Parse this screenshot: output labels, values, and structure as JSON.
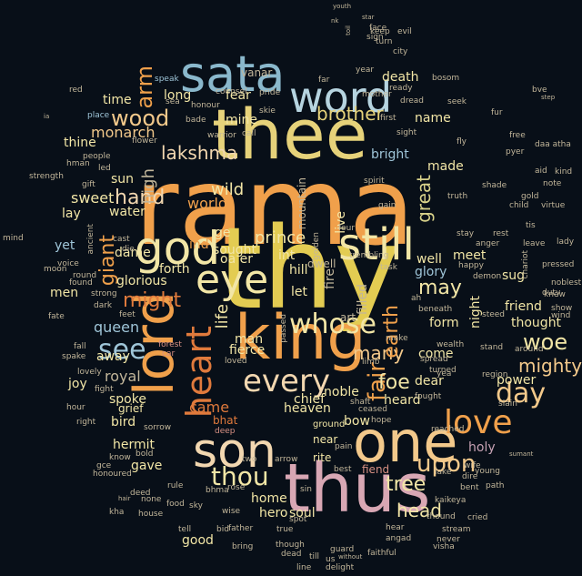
{
  "palette": [
    "#f0a04b",
    "#e8c85a",
    "#7fb3c8",
    "#d79083",
    "#f2e6a6",
    "#c2b69a",
    "#e07a3c",
    "#c7a2b4",
    "#9fc5d8",
    "#f3c98b"
  ],
  "words": [
    {
      "text": "rama",
      "color": "#f0a04b"
    },
    {
      "text": "thy",
      "color": "#e3cc52"
    },
    {
      "text": "thee",
      "color": "#e6d27a"
    },
    {
      "text": "sata",
      "color": "#8ab8cc"
    },
    {
      "text": "king",
      "color": "#f0a04b"
    },
    {
      "text": "thus",
      "color": "#d8a7b4"
    },
    {
      "text": "son",
      "color": "#f2d7b0"
    },
    {
      "text": "one",
      "color": "#f3c98b"
    },
    {
      "text": "lord",
      "color": "#f0a04b"
    },
    {
      "text": "god",
      "color": "#f2e6a6"
    },
    {
      "text": "word",
      "color": "#b6d4e0"
    },
    {
      "text": "still",
      "color": "#f2e6a6"
    },
    {
      "text": "eye",
      "color": "#f2e6a6"
    },
    {
      "text": "whose",
      "color": "#f2e6a6"
    },
    {
      "text": "heart",
      "color": "#e07a3c"
    },
    {
      "text": "every",
      "color": "#f2d7b0"
    },
    {
      "text": "day",
      "color": "#f3c98b"
    },
    {
      "text": "love",
      "color": "#f0a04b"
    },
    {
      "text": "see",
      "color": "#9fc5d8"
    },
    {
      "text": "thou",
      "color": "#f2e6a6"
    },
    {
      "text": "wood",
      "color": "#f3c98b"
    },
    {
      "text": "lakshma",
      "color": "#f2d7b0"
    },
    {
      "text": "brother",
      "color": "#e6d27a"
    },
    {
      "text": "upon",
      "color": "#f3c98b"
    },
    {
      "text": "fair",
      "color": "#f0a04b"
    },
    {
      "text": "might",
      "color": "#e07a3c"
    },
    {
      "text": "mighty",
      "color": "#f3c98b"
    },
    {
      "text": "tree",
      "color": "#f2e6a6"
    },
    {
      "text": "woe",
      "color": "#f2e6a6"
    },
    {
      "text": "many",
      "color": "#f3c98b"
    },
    {
      "text": "hand",
      "color": "#f2d7b0"
    },
    {
      "text": "prince",
      "color": "#f2e6a6"
    },
    {
      "text": "foe",
      "color": "#f2e6a6"
    },
    {
      "text": "may",
      "color": "#f2e6a6"
    },
    {
      "text": "earth",
      "color": "#f0a04b"
    },
    {
      "text": "head",
      "color": "#f2e6a6"
    },
    {
      "text": "came",
      "color": "#e07a3c"
    },
    {
      "text": "name",
      "color": "#f2e6a6"
    },
    {
      "text": "great",
      "color": "#d8d28a"
    },
    {
      "text": "arm",
      "color": "#f0a04b"
    },
    {
      "text": "wild",
      "color": "#f2e6a6"
    },
    {
      "text": "bright",
      "color": "#9fc5d8"
    },
    {
      "text": "giant",
      "color": "#f0a04b"
    },
    {
      "text": "high",
      "color": "#c2b69a"
    },
    {
      "text": "death",
      "color": "#f2e6a6"
    },
    {
      "text": "fear",
      "color": "#f2e6a6"
    },
    {
      "text": "long",
      "color": "#f2e6a6"
    },
    {
      "text": "monarch",
      "color": "#f3c98b"
    },
    {
      "text": "thine",
      "color": "#f2e6a6"
    },
    {
      "text": "sweet",
      "color": "#f2e6a6"
    },
    {
      "text": "world",
      "color": "#f0a04b"
    },
    {
      "text": "life",
      "color": "#f2e6a6"
    },
    {
      "text": "dame",
      "color": "#f2e6a6"
    },
    {
      "text": "queen",
      "color": "#9fc5d8"
    },
    {
      "text": "royal",
      "color": "#c2b69a"
    },
    {
      "text": "glorious",
      "color": "#f2e6a6"
    },
    {
      "text": "fierce",
      "color": "#f2e6a6"
    },
    {
      "text": "man",
      "color": "#f2e6a6"
    },
    {
      "text": "chief",
      "color": "#f2e6a6"
    },
    {
      "text": "heard",
      "color": "#f2e6a6"
    },
    {
      "text": "home",
      "color": "#f2e6a6"
    },
    {
      "text": "soul",
      "color": "#f2e6a6"
    },
    {
      "text": "hero",
      "color": "#f2e6a6"
    },
    {
      "text": "spoke",
      "color": "#f2e6a6"
    },
    {
      "text": "hermit",
      "color": "#f2e6a6"
    },
    {
      "text": "gave",
      "color": "#f2e6a6"
    },
    {
      "text": "joy",
      "color": "#f2e6a6"
    },
    {
      "text": "bow",
      "color": "#f2e6a6"
    },
    {
      "text": "holy",
      "color": "#c7a2b4"
    },
    {
      "text": "power",
      "color": "#f2e6a6"
    },
    {
      "text": "friend",
      "color": "#f2e6a6"
    },
    {
      "text": "thought",
      "color": "#f2e6a6"
    },
    {
      "text": "meet",
      "color": "#f2e6a6"
    },
    {
      "text": "glory",
      "color": "#9fc5d8"
    },
    {
      "text": "form",
      "color": "#f2e6a6"
    },
    {
      "text": "come",
      "color": "#f2e6a6"
    },
    {
      "text": "heaven",
      "color": "#f2e6a6"
    },
    {
      "text": "noble",
      "color": "#f2e6a6"
    },
    {
      "text": "dear",
      "color": "#f2e6a6"
    },
    {
      "text": "good",
      "color": "#f2e6a6"
    },
    {
      "text": "ground",
      "color": "#f2e6a6"
    },
    {
      "text": "sun",
      "color": "#f2e6a6"
    },
    {
      "text": "water",
      "color": "#f2e6a6"
    },
    {
      "text": "lay",
      "color": "#f2e6a6"
    },
    {
      "text": "yet",
      "color": "#9fc5d8"
    },
    {
      "text": "men",
      "color": "#f2e6a6"
    },
    {
      "text": "time",
      "color": "#f2e6a6"
    },
    {
      "text": "bird",
      "color": "#f2e6a6"
    },
    {
      "text": "grief",
      "color": "#f2e6a6"
    },
    {
      "text": "mine",
      "color": "#f2e6a6"
    },
    {
      "text": "forth",
      "color": "#f2e6a6"
    },
    {
      "text": "sought",
      "color": "#f2e6a6"
    },
    {
      "text": "made",
      "color": "#f2e6a6"
    },
    {
      "text": "night",
      "color": "#f2e6a6"
    },
    {
      "text": "away",
      "color": "#f2e6a6"
    },
    {
      "text": "live",
      "color": "#f2e6a6"
    },
    {
      "text": "hill",
      "color": "#f2e6a6"
    },
    {
      "text": "let",
      "color": "#f2e6a6"
    },
    {
      "text": "ind",
      "color": "#f0a04b"
    },
    {
      "text": "ge",
      "color": "#f2e6a6"
    },
    {
      "text": "int",
      "color": "#f2e6a6"
    },
    {
      "text": "oa er",
      "color": "#f2e6a6"
    },
    {
      "text": "bhat",
      "color": "#e07a3c"
    },
    {
      "text": "near",
      "color": "#f2e6a6"
    },
    {
      "text": "rite",
      "color": "#f2e6a6"
    },
    {
      "text": "fiend",
      "color": "#d79083"
    },
    {
      "text": "sug",
      "color": "#f2e6a6"
    },
    {
      "text": "well",
      "color": "#f2e6a6"
    },
    {
      "text": "stay",
      "color": "#c2b69a"
    },
    {
      "text": "leave",
      "color": "#c2b69a"
    },
    {
      "text": "rest",
      "color": "#c2b69a"
    },
    {
      "text": "child",
      "color": "#c2b69a"
    },
    {
      "text": "vanar",
      "color": "#c2b69a"
    },
    {
      "text": "speak",
      "color": "#9fc5d8"
    },
    {
      "text": "counsel",
      "color": "#c2b69a"
    },
    {
      "text": "pride",
      "color": "#c2b69a"
    },
    {
      "text": "skie",
      "color": "#c2b69a"
    },
    {
      "text": "warrior",
      "color": "#c2b69a"
    },
    {
      "text": "call",
      "color": "#c2b69a"
    },
    {
      "text": "honour",
      "color": "#c2b69a"
    },
    {
      "text": "sea",
      "color": "#c2b69a"
    },
    {
      "text": "bosom",
      "color": "#c2b69a"
    },
    {
      "text": "city",
      "color": "#c2b69a"
    },
    {
      "text": "mother",
      "color": "#c2b69a"
    },
    {
      "text": "ready",
      "color": "#c2b69a"
    },
    {
      "text": "dread",
      "color": "#c2b69a"
    },
    {
      "text": "seek",
      "color": "#c2b69a"
    },
    {
      "text": "first",
      "color": "#c2b69a"
    },
    {
      "text": "sight",
      "color": "#c2b69a"
    },
    {
      "text": "fly",
      "color": "#c2b69a"
    },
    {
      "text": "free",
      "color": "#c2b69a"
    },
    {
      "text": "spirit",
      "color": "#c2b69a"
    },
    {
      "text": "gain",
      "color": "#c2b69a"
    },
    {
      "text": "truth",
      "color": "#c2b69a"
    },
    {
      "text": "shade",
      "color": "#c2b69a"
    },
    {
      "text": "gold",
      "color": "#c2b69a"
    },
    {
      "text": "virtue",
      "color": "#c2b69a"
    },
    {
      "text": "lady",
      "color": "#c2b69a"
    },
    {
      "text": "kind",
      "color": "#c2b69a"
    },
    {
      "text": "aid",
      "color": "#c2b69a"
    },
    {
      "text": "note",
      "color": "#c2b69a"
    },
    {
      "text": "daa atha",
      "color": "#c2b69a"
    },
    {
      "text": "bve",
      "color": "#c2b69a"
    },
    {
      "text": "step",
      "color": "#c2b69a"
    },
    {
      "text": "knew",
      "color": "#c2b69a"
    },
    {
      "text": "show",
      "color": "#c2b69a"
    },
    {
      "text": "wind",
      "color": "#c2b69a"
    },
    {
      "text": "duty",
      "color": "#c2b69a"
    },
    {
      "text": "noblest",
      "color": "#c2b69a"
    },
    {
      "text": "pressed",
      "color": "#c2b69a"
    },
    {
      "text": "ah",
      "color": "#c2b69a"
    },
    {
      "text": "beneath",
      "color": "#c2b69a"
    },
    {
      "text": "steed",
      "color": "#c2b69a"
    },
    {
      "text": "around",
      "color": "#c2b69a"
    },
    {
      "text": "stand",
      "color": "#c2b69a"
    },
    {
      "text": "region",
      "color": "#c2b69a"
    },
    {
      "text": "slain",
      "color": "#c2b69a"
    },
    {
      "text": "turned",
      "color": "#c2b69a"
    },
    {
      "text": "spread",
      "color": "#c2b69a"
    },
    {
      "text": "wealth",
      "color": "#c2b69a"
    },
    {
      "text": "fought",
      "color": "#c2b69a"
    },
    {
      "text": "yea",
      "color": "#c2b69a"
    },
    {
      "text": "reached",
      "color": "#c2b69a"
    },
    {
      "text": "wife",
      "color": "#c2b69a"
    },
    {
      "text": "young",
      "color": "#c2b69a"
    },
    {
      "text": "lake",
      "color": "#c2b69a"
    },
    {
      "text": "dire",
      "color": "#c2b69a"
    },
    {
      "text": "bent",
      "color": "#c2b69a"
    },
    {
      "text": "path",
      "color": "#c2b69a"
    },
    {
      "text": "sumant",
      "color": "#c2b69a"
    },
    {
      "text": "kaikeya",
      "color": "#c2b69a"
    },
    {
      "text": "cried",
      "color": "#c2b69a"
    },
    {
      "text": "thound",
      "color": "#c2b69a"
    },
    {
      "text": "stream",
      "color": "#c2b69a"
    },
    {
      "text": "never",
      "color": "#c2b69a"
    },
    {
      "text": "visha",
      "color": "#c2b69a"
    },
    {
      "text": "angad",
      "color": "#c2b69a"
    },
    {
      "text": "hear",
      "color": "#c2b69a"
    },
    {
      "text": "faithful",
      "color": "#c2b69a"
    },
    {
      "text": "delight",
      "color": "#c2b69a"
    },
    {
      "text": "without",
      "color": "#c2b69a"
    },
    {
      "text": "guard",
      "color": "#c2b69a"
    },
    {
      "text": "till",
      "color": "#c2b69a"
    },
    {
      "text": "us",
      "color": "#c2b69a"
    },
    {
      "text": "dead",
      "color": "#c2b69a"
    },
    {
      "text": "line",
      "color": "#c2b69a"
    },
    {
      "text": "bring",
      "color": "#c2b69a"
    },
    {
      "text": "father",
      "color": "#c2b69a"
    },
    {
      "text": "bid",
      "color": "#c2b69a"
    },
    {
      "text": "tell",
      "color": "#c2b69a"
    },
    {
      "text": "true",
      "color": "#c2b69a"
    },
    {
      "text": "two",
      "color": "#c2b69a"
    },
    {
      "text": "though",
      "color": "#c2b69a"
    },
    {
      "text": "wise",
      "color": "#c2b69a"
    },
    {
      "text": "rose",
      "color": "#c2b69a"
    },
    {
      "text": "bhma",
      "color": "#c2b69a"
    },
    {
      "text": "sky",
      "color": "#c2b69a"
    },
    {
      "text": "rule",
      "color": "#c2b69a"
    },
    {
      "text": "deed",
      "color": "#c2b69a"
    },
    {
      "text": "none",
      "color": "#c2b69a"
    },
    {
      "text": "food",
      "color": "#c2b69a"
    },
    {
      "text": "hair",
      "color": "#c2b69a"
    },
    {
      "text": "house",
      "color": "#c2b69a"
    },
    {
      "text": "kha",
      "color": "#c2b69a"
    },
    {
      "text": "honoured",
      "color": "#c2b69a"
    },
    {
      "text": "gce",
      "color": "#c2b69a"
    },
    {
      "text": "know",
      "color": "#c2b69a"
    },
    {
      "text": "bold",
      "color": "#c2b69a"
    },
    {
      "text": "right",
      "color": "#c2b69a"
    },
    {
      "text": "hour",
      "color": "#c2b69a"
    },
    {
      "text": "fall",
      "color": "#c2b69a"
    },
    {
      "text": "spake",
      "color": "#c2b69a"
    },
    {
      "text": "lovely",
      "color": "#c2b69a"
    },
    {
      "text": "fight",
      "color": "#c2b69a"
    },
    {
      "text": "fate",
      "color": "#c2b69a"
    },
    {
      "text": "feet",
      "color": "#c2b69a"
    },
    {
      "text": "dark",
      "color": "#c2b69a"
    },
    {
      "text": "strong",
      "color": "#c2b69a"
    },
    {
      "text": "round",
      "color": "#c2b69a"
    },
    {
      "text": "found",
      "color": "#c2b69a"
    },
    {
      "text": "moon",
      "color": "#c2b69a"
    },
    {
      "text": "mind",
      "color": "#c2b69a"
    },
    {
      "text": "strength",
      "color": "#c2b69a"
    },
    {
      "text": "gift",
      "color": "#c2b69a"
    },
    {
      "text": "hman",
      "color": "#c2b69a"
    },
    {
      "text": "led",
      "color": "#c2b69a"
    },
    {
      "text": "people",
      "color": "#c2b69a"
    },
    {
      "text": "place",
      "color": "#9fc5d8"
    },
    {
      "text": "red",
      "color": "#c2b69a"
    },
    {
      "text": "ia",
      "color": "#c2b69a"
    },
    {
      "text": "year",
      "color": "#c2b69a"
    },
    {
      "text": "far",
      "color": "#c2b69a"
    },
    {
      "text": "keep",
      "color": "#c2b69a"
    },
    {
      "text": "turn",
      "color": "#c2b69a"
    },
    {
      "text": "sign",
      "color": "#c2b69a"
    },
    {
      "text": "face",
      "color": "#c2b69a"
    },
    {
      "text": "evil",
      "color": "#c2b69a"
    },
    {
      "text": "star",
      "color": "#c2b69a"
    },
    {
      "text": "youth",
      "color": "#c2b69a"
    },
    {
      "text": "nk",
      "color": "#c2b69a"
    },
    {
      "text": "toil",
      "color": "#c2b69a"
    },
    {
      "text": "fur",
      "color": "#c2b69a"
    },
    {
      "text": "pyer",
      "color": "#c2b69a"
    },
    {
      "text": "bade",
      "color": "#c2b69a"
    },
    {
      "text": "fire",
      "color": "#c2b69a"
    },
    {
      "text": "golden",
      "color": "#c2b69a"
    },
    {
      "text": "mountain",
      "color": "#c2b69a"
    },
    {
      "text": "dwell",
      "color": "#c2b69a"
    },
    {
      "text": "passed",
      "color": "#c2b69a"
    },
    {
      "text": "four",
      "color": "#c2b69a"
    },
    {
      "text": "trembling",
      "color": "#c2b69a"
    },
    {
      "text": "task",
      "color": "#c2b69a"
    },
    {
      "text": "filled",
      "color": "#c2b69a"
    },
    {
      "text": "art",
      "color": "#c2b69a"
    },
    {
      "text": "make",
      "color": "#c2b69a"
    },
    {
      "text": "limb",
      "color": "#c2b69a"
    },
    {
      "text": "loved",
      "color": "#c2b69a"
    },
    {
      "text": "ceased",
      "color": "#c2b69a"
    },
    {
      "text": "shaft",
      "color": "#c2b69a"
    },
    {
      "text": "arrow",
      "color": "#c2b69a"
    },
    {
      "text": "pain",
      "color": "#c2b69a"
    },
    {
      "text": "best",
      "color": "#c2b69a"
    },
    {
      "text": "sin",
      "color": "#c2b69a"
    },
    {
      "text": "spot",
      "color": "#c2b69a"
    },
    {
      "text": "sorrow",
      "color": "#c2b69a"
    },
    {
      "text": "cast",
      "color": "#c2b69a"
    },
    {
      "text": "die",
      "color": "#c2b69a"
    },
    {
      "text": "tis",
      "color": "#c2b69a"
    },
    {
      "text": "anger",
      "color": "#c2b69a"
    },
    {
      "text": "chariot",
      "color": "#c2b69a"
    },
    {
      "text": "happy",
      "color": "#c2b69a"
    },
    {
      "text": "demon",
      "color": "#c2b69a"
    },
    {
      "text": "flower",
      "color": "#c2b69a"
    },
    {
      "text": "voice",
      "color": "#c2b69a"
    },
    {
      "text": "ancient",
      "color": "#c2b69a"
    },
    {
      "text": "forest",
      "color": "#d79083"
    },
    {
      "text": "car",
      "color": "#d79083"
    },
    {
      "text": "deep",
      "color": "#d79083"
    },
    {
      "text": "hope",
      "color": "#c2b69a"
    },
    {
      "text": "upon",
      "color": "#c2b69a"
    }
  ]
}
